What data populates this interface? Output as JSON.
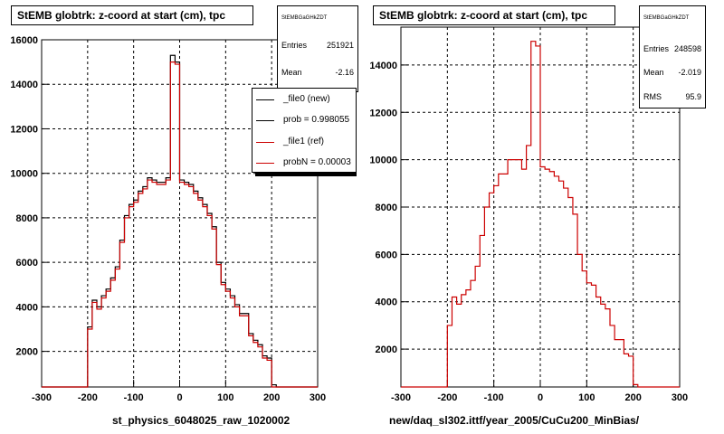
{
  "colors": {
    "new": "#000000",
    "ref": "#cc0000",
    "grid": "#000000"
  },
  "left_panel": {
    "title": "StEMB globtrk: z-coord at start (cm), tpc",
    "stats": {
      "name": "StEMBGaGHkZDT",
      "rows": [
        {
          "key": "Entries",
          "value": "251921"
        },
        {
          "key": "Mean",
          "value": "-2.16"
        }
      ]
    },
    "legend": [
      {
        "label": "_file0 (new)",
        "color": "#000000"
      },
      {
        "label": "prob = 0.998055",
        "color": "#000000"
      },
      {
        "label": "_file1 (ref)",
        "color": "#cc0000"
      },
      {
        "label": "probN = 0.00003",
        "color": "#cc0000"
      }
    ],
    "xlabel": "st_physics_6048025_raw_1020002"
  },
  "right_panel": {
    "title": "StEMB globtrk: z-coord at start (cm), tpc",
    "stats": {
      "name": "StEMBGaGHkZDT",
      "rows": [
        {
          "key": "Entries",
          "value": "248598"
        },
        {
          "key": "Mean",
          "value": "-2.019"
        },
        {
          "key": "RMS",
          "value": "95.9"
        }
      ]
    },
    "xlabel": "new/daq_sl302.ittf/year_2005/CuCu200_MinBias/"
  },
  "chart_data": [
    {
      "type": "histogram",
      "title": "StEMB globtrk: z-coord at start (cm), tpc",
      "xlabel": "st_physics_6048025_raw_1020002",
      "xlim": [
        -300,
        300
      ],
      "ylim": [
        400,
        16000
      ],
      "xticks": [
        -300,
        -200,
        -100,
        0,
        100,
        200,
        300
      ],
      "yticks": [
        2000,
        4000,
        6000,
        8000,
        10000,
        12000,
        14000,
        16000
      ],
      "bin_edges": [
        -200,
        -190,
        -180,
        -170,
        -160,
        -150,
        -140,
        -130,
        -120,
        -110,
        -100,
        -90,
        -80,
        -70,
        -60,
        -50,
        -40,
        -30,
        -20,
        -10,
        0,
        10,
        20,
        30,
        40,
        50,
        60,
        70,
        80,
        90,
        100,
        110,
        120,
        130,
        140,
        150,
        160,
        170,
        180,
        190,
        200,
        210
      ],
      "grid": true,
      "legend_position": "top-right",
      "series": [
        {
          "name": "_file0 (new)",
          "color": "#000000",
          "values": [
            3100,
            4300,
            4000,
            4500,
            4800,
            5300,
            5800,
            7000,
            8100,
            8600,
            8800,
            9200,
            9400,
            9800,
            9700,
            9600,
            9600,
            9800,
            15300,
            15000,
            9700,
            9600,
            9500,
            9200,
            8900,
            8600,
            8200,
            7600,
            6000,
            5100,
            4800,
            4500,
            4100,
            3700,
            3700,
            2800,
            2500,
            2300,
            1800,
            1700,
            500
          ]
        },
        {
          "name": "_file1 (ref)",
          "color": "#cc0000",
          "values": [
            3000,
            4200,
            3900,
            4400,
            4700,
            5200,
            5700,
            6900,
            8000,
            8500,
            8700,
            9100,
            9300,
            9700,
            9600,
            9500,
            9500,
            9700,
            15000,
            14900,
            9600,
            9500,
            9400,
            9100,
            8800,
            8500,
            8100,
            7500,
            5900,
            5000,
            4700,
            4400,
            4000,
            3600,
            3600,
            2700,
            2400,
            2200,
            1700,
            1600,
            400
          ]
        }
      ]
    },
    {
      "type": "histogram",
      "title": "StEMB globtrk: z-coord at start (cm), tpc",
      "xlabel": "new/daq_sl302.ittf/year_2005/CuCu200_MinBias/",
      "xlim": [
        -300,
        300
      ],
      "ylim": [
        400,
        15600
      ],
      "xticks": [
        -300,
        -200,
        -100,
        0,
        100,
        200,
        300
      ],
      "yticks": [
        2000,
        4000,
        6000,
        8000,
        10000,
        12000,
        14000
      ],
      "bin_edges": [
        -200,
        -190,
        -180,
        -170,
        -160,
        -150,
        -140,
        -130,
        -120,
        -110,
        -100,
        -90,
        -80,
        -70,
        -60,
        -50,
        -40,
        -30,
        -20,
        -10,
        0,
        10,
        20,
        30,
        40,
        50,
        60,
        70,
        80,
        90,
        100,
        110,
        120,
        130,
        140,
        150,
        160,
        170,
        180,
        190,
        200,
        210
      ],
      "grid": true,
      "series": [
        {
          "name": "",
          "color": "#cc0000",
          "values": [
            3000,
            4200,
            3900,
            4300,
            4500,
            4900,
            5500,
            6800,
            8000,
            8600,
            8900,
            9400,
            9400,
            10000,
            10000,
            10000,
            9600,
            10600,
            15000,
            14800,
            9700,
            9600,
            9500,
            9300,
            9100,
            8800,
            8400,
            7700,
            6000,
            5300,
            4800,
            4700,
            4200,
            3900,
            3700,
            3000,
            2400,
            2400,
            1800,
            1700,
            500
          ]
        }
      ]
    }
  ]
}
